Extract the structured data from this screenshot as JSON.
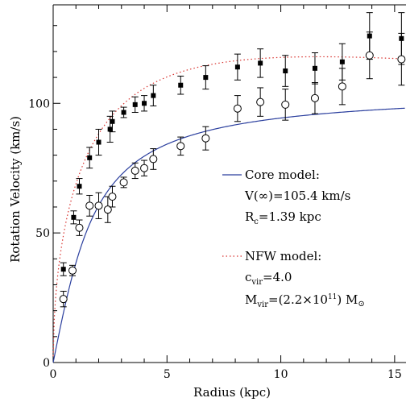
{
  "chart_data": {
    "type": "scatter",
    "xlabel": "Radius (kpc)",
    "ylabel": "Rotation Velocity (km/s)",
    "xlim": [
      0,
      15.5
    ],
    "ylim": [
      0,
      138
    ],
    "x_ticks": [
      "0",
      "5",
      "10",
      "15"
    ],
    "y_ticks": [
      "0",
      "50",
      "100"
    ],
    "series": [
      {
        "marker": "filled-square",
        "points": [
          {
            "x": 0.45,
            "y": 36,
            "err": 2.5
          },
          {
            "x": 0.9,
            "y": 56,
            "err": 2.5
          },
          {
            "x": 1.15,
            "y": 68,
            "err": 3
          },
          {
            "x": 1.6,
            "y": 79,
            "err": 4
          },
          {
            "x": 2.0,
            "y": 85,
            "err": 5
          },
          {
            "x": 2.5,
            "y": 90,
            "err": 5
          },
          {
            "x": 2.6,
            "y": 93,
            "err": 4
          },
          {
            "x": 3.1,
            "y": 96.5,
            "err": 2
          },
          {
            "x": 3.6,
            "y": 99.5,
            "err": 3
          },
          {
            "x": 4.0,
            "y": 100,
            "err": 3
          },
          {
            "x": 4.4,
            "y": 103,
            "err": 4
          },
          {
            "x": 5.6,
            "y": 107,
            "err": 3.5
          },
          {
            "x": 6.7,
            "y": 110,
            "err": 4.5
          },
          {
            "x": 8.1,
            "y": 114,
            "err": 5
          },
          {
            "x": 9.1,
            "y": 115.5,
            "err": 5.5
          },
          {
            "x": 10.2,
            "y": 112.5,
            "err": 6
          },
          {
            "x": 11.5,
            "y": 113.5,
            "err": 6
          },
          {
            "x": 12.7,
            "y": 116,
            "err": 7
          },
          {
            "x": 13.9,
            "y": 126,
            "err": 9
          },
          {
            "x": 15.3,
            "y": 125,
            "err": 10
          }
        ]
      },
      {
        "marker": "open-circle",
        "points": [
          {
            "x": 0.45,
            "y": 24.5,
            "err": 3
          },
          {
            "x": 0.85,
            "y": 35.5,
            "err": 2
          },
          {
            "x": 1.15,
            "y": 52,
            "err": 3
          },
          {
            "x": 1.6,
            "y": 60.5,
            "err": 4
          },
          {
            "x": 2.0,
            "y": 60.5,
            "err": 5
          },
          {
            "x": 2.4,
            "y": 59,
            "err": 5
          },
          {
            "x": 2.6,
            "y": 64,
            "err": 4
          },
          {
            "x": 3.1,
            "y": 69.5,
            "err": 2
          },
          {
            "x": 3.6,
            "y": 74,
            "err": 3
          },
          {
            "x": 4.0,
            "y": 75,
            "err": 3
          },
          {
            "x": 4.4,
            "y": 78.5,
            "err": 4
          },
          {
            "x": 5.6,
            "y": 83.5,
            "err": 3.5
          },
          {
            "x": 6.7,
            "y": 86.5,
            "err": 4.5
          },
          {
            "x": 8.1,
            "y": 98,
            "err": 5
          },
          {
            "x": 9.1,
            "y": 100.5,
            "err": 5.5
          },
          {
            "x": 10.2,
            "y": 99.5,
            "err": 6
          },
          {
            "x": 11.5,
            "y": 102,
            "err": 6
          },
          {
            "x": 12.7,
            "y": 106.5,
            "err": 7
          },
          {
            "x": 13.9,
            "y": 118.5,
            "err": 9
          },
          {
            "x": 15.3,
            "y": 117,
            "err": 10
          }
        ]
      }
    ],
    "models": [
      {
        "name": "Core model:",
        "style": "solid",
        "color": "#2b3f9e",
        "params": {
          "V_inf": 105.4,
          "R_c": 1.39
        },
        "legend_lines": [
          "V(∞)=105.4 km/s",
          "R",
          "c",
          "=1.39 kpc"
        ]
      },
      {
        "name": "NFW model:",
        "style": "dotted",
        "color": "#d8322e",
        "params": {
          "c_vir": 4.0,
          "M_vir": 220000000000.0
        },
        "legend_lines": [
          "c",
          "vir",
          "=4.0",
          "M",
          "vir",
          "=(2.2×10",
          "11",
          ") M",
          "⊙"
        ]
      }
    ]
  }
}
